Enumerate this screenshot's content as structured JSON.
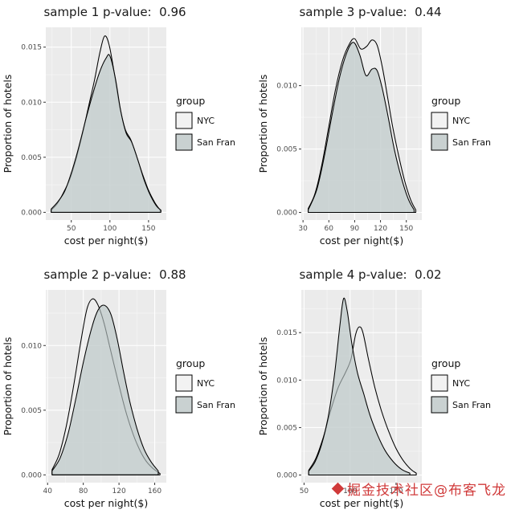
{
  "axis": {
    "xlabel": "cost per night($)",
    "ylabel": "Proportion of hotels"
  },
  "legend": {
    "title": "group",
    "items": [
      "NYC",
      "San Fran"
    ]
  },
  "watermark": {
    "text": "掘金技术社区@布客飞龙"
  },
  "colors": {
    "panel_bg": "#ebebeb",
    "grid_major": "#ffffff",
    "grid_minor": "#f6f6f6",
    "tick_label": "#4d4d4d",
    "axis_title": "#111111",
    "curve_stroke": "#000000",
    "watermark": "#d03a3a"
  },
  "chart_data": [
    {
      "type": "area",
      "name": "sample-1",
      "title": "sample 1 p-value:  0.96",
      "xlabel": "cost per night($)",
      "ylabel": "Proportion of hotels",
      "xlim": [
        17,
        173
      ],
      "ylim": [
        -0.0007,
        0.0168
      ],
      "xticks": [
        50,
        100,
        150
      ],
      "yticks": [
        0,
        0.005,
        0.01,
        0.015
      ],
      "legend_title": "group",
      "series": [
        {
          "name": "NYC",
          "fill": "#efefef",
          "opacity": 0.55,
          "points": [
            [
              24,
              0.0002
            ],
            [
              32,
              0.0008
            ],
            [
              40,
              0.0018
            ],
            [
              48,
              0.003
            ],
            [
              56,
              0.0048
            ],
            [
              64,
              0.007
            ],
            [
              72,
              0.0095
            ],
            [
              80,
              0.012
            ],
            [
              87,
              0.0145
            ],
            [
              93,
              0.016
            ],
            [
              99,
              0.0152
            ],
            [
              106,
              0.0125
            ],
            [
              113,
              0.0095
            ],
            [
              120,
              0.0075
            ],
            [
              127,
              0.0066
            ],
            [
              134,
              0.0052
            ],
            [
              142,
              0.0035
            ],
            [
              150,
              0.002
            ],
            [
              158,
              0.0009
            ],
            [
              165,
              0.0002
            ]
          ]
        },
        {
          "name": "San Fran",
          "fill": "#b9c4c4",
          "opacity": 0.65,
          "points": [
            [
              24,
              0.0003
            ],
            [
              33,
              0.001
            ],
            [
              42,
              0.002
            ],
            [
              51,
              0.0038
            ],
            [
              60,
              0.006
            ],
            [
              69,
              0.0085
            ],
            [
              78,
              0.0108
            ],
            [
              87,
              0.0128
            ],
            [
              95,
              0.014
            ],
            [
              100,
              0.0142
            ],
            [
              107,
              0.0122
            ],
            [
              114,
              0.0092
            ],
            [
              121,
              0.0072
            ],
            [
              128,
              0.0064
            ],
            [
              136,
              0.0048
            ],
            [
              144,
              0.003
            ],
            [
              152,
              0.0016
            ],
            [
              160,
              0.0006
            ],
            [
              166,
              0.0002
            ]
          ]
        }
      ]
    },
    {
      "type": "area",
      "name": "sample-3",
      "title": "sample 3 p-value:  0.44",
      "xlabel": "cost per night($)",
      "ylabel": "Proportion of hotels",
      "xlim": [
        28,
        168
      ],
      "ylim": [
        -0.0006,
        0.0146
      ],
      "xticks": [
        30,
        60,
        90,
        120,
        150
      ],
      "yticks": [
        0,
        0.005,
        0.01
      ],
      "legend_title": "group",
      "series": [
        {
          "name": "NYC",
          "fill": "#efefef",
          "opacity": 0.55,
          "points": [
            [
              36,
              0.0003
            ],
            [
              44,
              0.0015
            ],
            [
              52,
              0.0038
            ],
            [
              60,
              0.0068
            ],
            [
              68,
              0.0098
            ],
            [
              76,
              0.012
            ],
            [
              84,
              0.0133
            ],
            [
              90,
              0.0137
            ],
            [
              97,
              0.0129
            ],
            [
              104,
              0.0131
            ],
            [
              110,
              0.0136
            ],
            [
              116,
              0.0132
            ],
            [
              122,
              0.0115
            ],
            [
              128,
              0.0092
            ],
            [
              134,
              0.0068
            ],
            [
              141,
              0.0045
            ],
            [
              148,
              0.0025
            ],
            [
              155,
              0.001
            ],
            [
              161,
              0.0002
            ]
          ]
        },
        {
          "name": "San Fran",
          "fill": "#b9c4c4",
          "opacity": 0.65,
          "points": [
            [
              36,
              0.0002
            ],
            [
              46,
              0.0018
            ],
            [
              55,
              0.0045
            ],
            [
              64,
              0.0078
            ],
            [
              73,
              0.0108
            ],
            [
              82,
              0.0128
            ],
            [
              89,
              0.0134
            ],
            [
              96,
              0.0124
            ],
            [
              103,
              0.0108
            ],
            [
              110,
              0.0113
            ],
            [
              116,
              0.0112
            ],
            [
              122,
              0.0098
            ],
            [
              129,
              0.0075
            ],
            [
              136,
              0.005
            ],
            [
              144,
              0.0028
            ],
            [
              152,
              0.0011
            ],
            [
              159,
              0.0002
            ]
          ]
        }
      ]
    },
    {
      "type": "area",
      "name": "sample-2",
      "title": "sample 2 p-value:  0.88",
      "xlabel": "cost per night($)",
      "ylabel": "Proportion of hotels",
      "xlim": [
        38,
        173
      ],
      "ylim": [
        -0.0006,
        0.0143
      ],
      "xticks": [
        40,
        80,
        120,
        160
      ],
      "yticks": [
        0,
        0.005,
        0.01
      ],
      "legend_title": "group",
      "series": [
        {
          "name": "NYC",
          "fill": "#efefef",
          "opacity": 0.55,
          "points": [
            [
              45,
              0.0004
            ],
            [
              53,
              0.0016
            ],
            [
              61,
              0.0038
            ],
            [
              69,
              0.0068
            ],
            [
              77,
              0.0102
            ],
            [
              84,
              0.0128
            ],
            [
              90,
              0.0136
            ],
            [
              96,
              0.0132
            ],
            [
              103,
              0.0118
            ],
            [
              110,
              0.0098
            ],
            [
              118,
              0.0075
            ],
            [
              126,
              0.0053
            ],
            [
              134,
              0.0035
            ],
            [
              142,
              0.0021
            ],
            [
              150,
              0.0011
            ],
            [
              158,
              0.0005
            ],
            [
              166,
              0.0001
            ]
          ]
        },
        {
          "name": "San Fran",
          "fill": "#b9c4c4",
          "opacity": 0.65,
          "points": [
            [
              45,
              0.0003
            ],
            [
              54,
              0.0013
            ],
            [
              63,
              0.0032
            ],
            [
              72,
              0.006
            ],
            [
              81,
              0.009
            ],
            [
              90,
              0.0115
            ],
            [
              97,
              0.0128
            ],
            [
              104,
              0.0131
            ],
            [
              111,
              0.0124
            ],
            [
              118,
              0.0105
            ],
            [
              125,
              0.008
            ],
            [
              132,
              0.0057
            ],
            [
              140,
              0.0036
            ],
            [
              148,
              0.002
            ],
            [
              156,
              0.001
            ],
            [
              164,
              0.0003
            ]
          ]
        }
      ]
    },
    {
      "type": "area",
      "name": "sample-4",
      "title": "sample 4 p-value:  0.02",
      "xlabel": "cost per night($)",
      "ylabel": "Proportion of hotels",
      "xlim": [
        47,
        178
      ],
      "ylim": [
        -0.0008,
        0.0195
      ],
      "xticks": [
        50,
        100,
        150
      ],
      "yticks": [
        0,
        0.005,
        0.01,
        0.015
      ],
      "legend_title": "group",
      "series": [
        {
          "name": "NYC",
          "fill": "#efefef",
          "opacity": 0.55,
          "points": [
            [
              55,
              0.0005
            ],
            [
              63,
              0.0018
            ],
            [
              71,
              0.004
            ],
            [
              79,
              0.0068
            ],
            [
              87,
              0.0092
            ],
            [
              95,
              0.0108
            ],
            [
              101,
              0.0122
            ],
            [
              106,
              0.0148
            ],
            [
              110,
              0.0156
            ],
            [
              114,
              0.015
            ],
            [
              120,
              0.0122
            ],
            [
              127,
              0.0092
            ],
            [
              134,
              0.0068
            ],
            [
              142,
              0.0046
            ],
            [
              150,
              0.0028
            ],
            [
              158,
              0.0015
            ],
            [
              166,
              0.0006
            ],
            [
              172,
              0.0002
            ]
          ]
        },
        {
          "name": "San Fran",
          "fill": "#b9c4c4",
          "opacity": 0.65,
          "points": [
            [
              55,
              0.0004
            ],
            [
              62,
              0.0014
            ],
            [
              69,
              0.0032
            ],
            [
              76,
              0.006
            ],
            [
              83,
              0.0105
            ],
            [
              89,
              0.0158
            ],
            [
              93,
              0.0186
            ],
            [
              97,
              0.0172
            ],
            [
              102,
              0.0138
            ],
            [
              108,
              0.0108
            ],
            [
              115,
              0.0085
            ],
            [
              122,
              0.0062
            ],
            [
              130,
              0.0042
            ],
            [
              138,
              0.0026
            ],
            [
              147,
              0.0014
            ],
            [
              156,
              0.0006
            ],
            [
              165,
              0.0002
            ]
          ]
        }
      ]
    }
  ]
}
